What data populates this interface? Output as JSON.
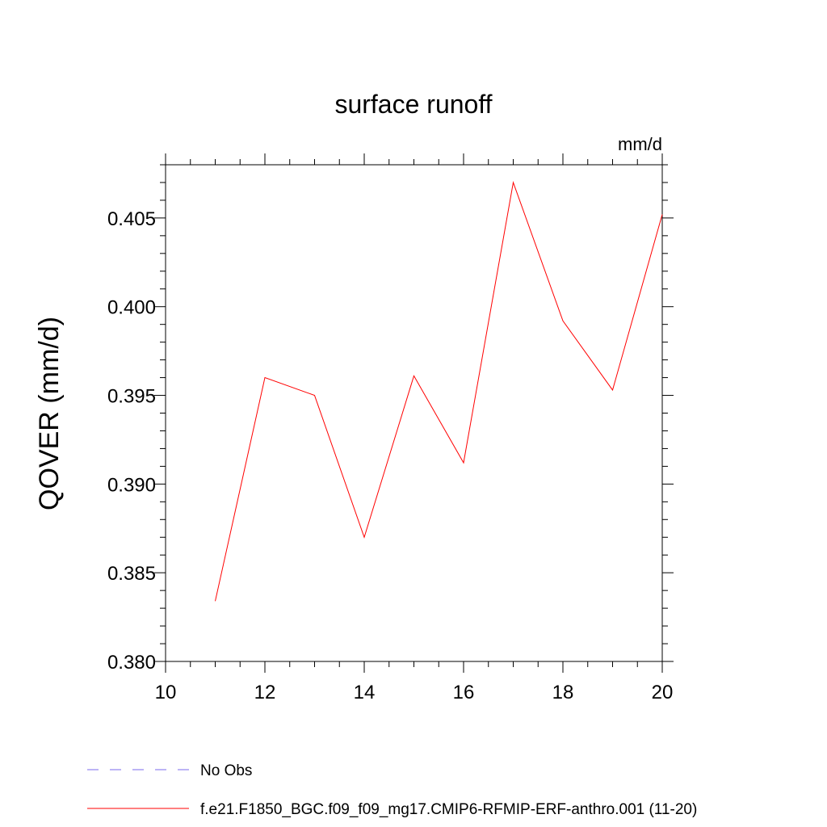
{
  "chart_data": {
    "type": "line",
    "title": "surface runoff",
    "units": "mm/d",
    "xlabel": "",
    "ylabel": "QOVER  (mm/d)",
    "xlim": [
      10,
      20
    ],
    "ylim": [
      0.38,
      0.408
    ],
    "x_ticks": [
      10,
      12,
      14,
      16,
      18,
      20
    ],
    "y_ticks": [
      0.38,
      0.385,
      0.39,
      0.395,
      0.4,
      0.405
    ],
    "x_tick_labels": [
      "10",
      "12",
      "14",
      "16",
      "18",
      "20"
    ],
    "y_tick_labels": [
      "0.380",
      "0.385",
      "0.390",
      "0.395",
      "0.400",
      "0.405"
    ],
    "grid": false,
    "legend_position": "bottom",
    "series": [
      {
        "name": "f.e21.F1850_BGC.f09_f09_mg17.CMIP6-RFMIP-ERF-anthro.001 (11-20)",
        "color": "#ff0000",
        "dash": "solid",
        "x": [
          11,
          12,
          13,
          14,
          15,
          16,
          17,
          18,
          19,
          20
        ],
        "y": [
          0.3834,
          0.396,
          0.395,
          0.387,
          0.3961,
          0.3912,
          0.407,
          0.3992,
          0.3953,
          0.4052
        ]
      }
    ],
    "legend": [
      {
        "label": "No Obs",
        "color": "#7b68ee",
        "dash": "dashed"
      },
      {
        "label": "f.e21.F1850_BGC.f09_f09_mg17.CMIP6-RFMIP-ERF-anthro.001 (11-20)",
        "color": "#ff0000",
        "dash": "solid"
      }
    ]
  }
}
